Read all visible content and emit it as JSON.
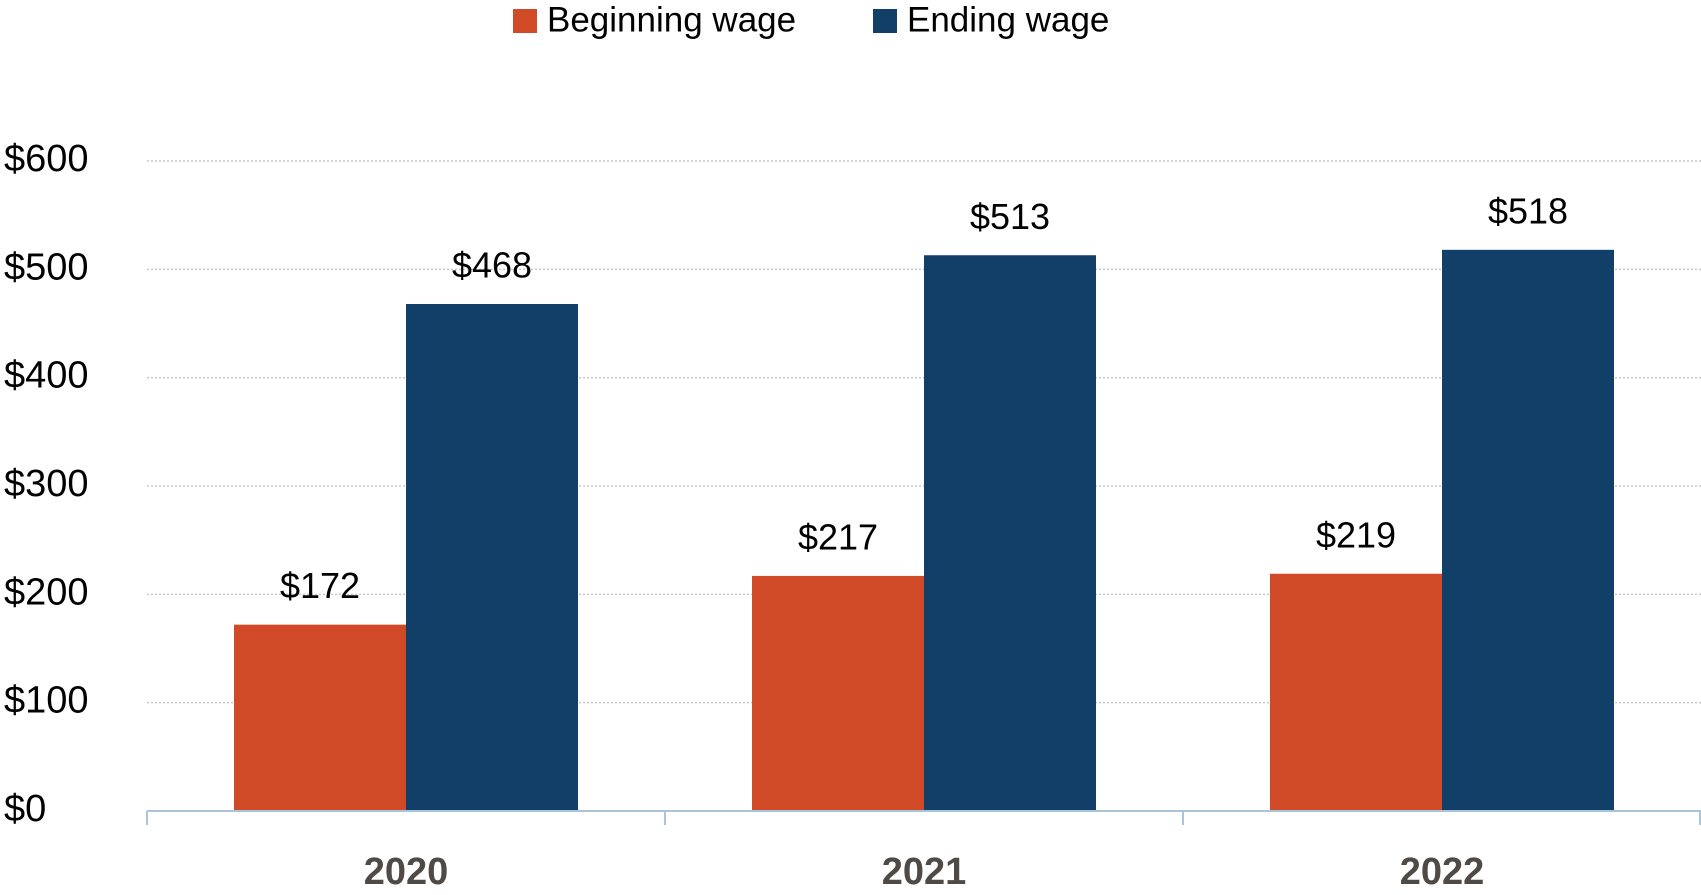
{
  "chart_data": {
    "type": "bar",
    "categories": [
      "2020",
      "2021",
      "2022"
    ],
    "series": [
      {
        "name": "Beginning wage",
        "color": "#d14a28",
        "values": [
          172,
          217,
          219
        ],
        "value_labels": [
          "$172",
          "$217",
          "$219"
        ]
      },
      {
        "name": "Ending wage",
        "color": "#113f68",
        "values": [
          468,
          513,
          518
        ],
        "value_labels": [
          "$468",
          "$513",
          "$518"
        ]
      }
    ],
    "ylim": [
      0,
      600
    ],
    "yticks": [
      {
        "value": 0,
        "label": "$0"
      },
      {
        "value": 100,
        "label": "$100"
      },
      {
        "value": 200,
        "label": "$200"
      },
      {
        "value": 300,
        "label": "$300"
      },
      {
        "value": 400,
        "label": "$400"
      },
      {
        "value": 500,
        "label": "$500"
      },
      {
        "value": 600,
        "label": "$600"
      }
    ],
    "grid": true,
    "legend": "top"
  }
}
